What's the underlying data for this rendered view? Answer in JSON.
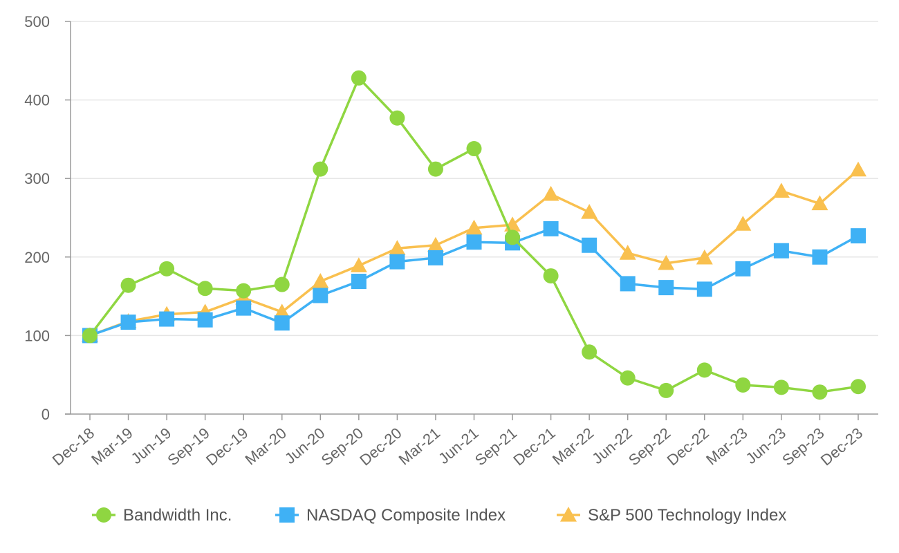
{
  "chart_data": {
    "type": "line",
    "title": "",
    "xlabel": "",
    "ylabel": "",
    "ylim": [
      0,
      500
    ],
    "yticks": [
      "0",
      "100",
      "200",
      "300",
      "400",
      "500"
    ],
    "grid": true,
    "legend_position": "bottom",
    "categories": [
      "Dec-18",
      "Mar-19",
      "Jun-19",
      "Sep-19",
      "Dec-19",
      "Mar-20",
      "Jun-20",
      "Sep-20",
      "Dec-20",
      "Mar-21",
      "Jun-21",
      "Sep-21",
      "Dec-21",
      "Mar-22",
      "Jun-22",
      "Sep-22",
      "Dec-22",
      "Mar-23",
      "Jun-23",
      "Sep-23",
      "Dec-23"
    ],
    "series": [
      {
        "name": "Bandwidth Inc.",
        "marker": "circle",
        "color": "#8fd641",
        "values": [
          100,
          164,
          185,
          160,
          157,
          165,
          312,
          428,
          377,
          312,
          338,
          225,
          176,
          79,
          46,
          30,
          56,
          37,
          34,
          28,
          35
        ]
      },
      {
        "name": "NASDAQ Composite Index",
        "marker": "square",
        "color": "#3fb1f5",
        "values": [
          100,
          117,
          121,
          120,
          135,
          116,
          151,
          169,
          194,
          199,
          219,
          218,
          236,
          215,
          166,
          161,
          159,
          185,
          208,
          200,
          227
        ]
      },
      {
        "name": "S&P 500 Technology Index",
        "marker": "triangle",
        "color": "#f9c04f",
        "values": [
          100,
          118,
          127,
          130,
          148,
          130,
          169,
          189,
          211,
          215,
          237,
          241,
          280,
          257,
          205,
          192,
          199,
          242,
          284,
          268,
          311
        ]
      }
    ]
  }
}
